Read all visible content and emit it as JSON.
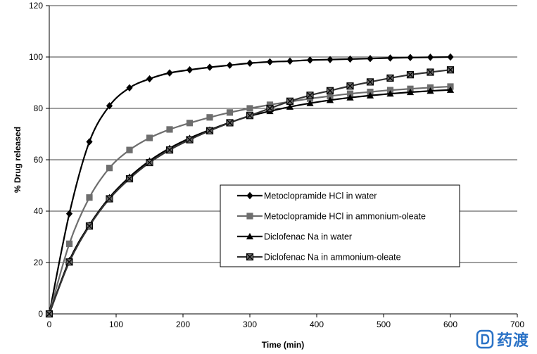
{
  "chart_data": {
    "type": "line",
    "title": "",
    "xlabel": "Time (min)",
    "ylabel": "% Drug released",
    "xlim": [
      0,
      700
    ],
    "ylim": [
      0,
      120
    ],
    "xticks": [
      0,
      100,
      200,
      300,
      400,
      500,
      600,
      700
    ],
    "yticks": [
      0,
      20,
      40,
      60,
      80,
      100,
      120
    ],
    "grid": "horizontal",
    "legend_position": "center-right",
    "x": [
      0,
      30,
      60,
      90,
      120,
      150,
      180,
      210,
      240,
      270,
      300,
      330,
      360,
      390,
      420,
      450,
      480,
      510,
      540,
      570,
      600
    ],
    "series": [
      {
        "name": "Metoclopramide HCl in water",
        "marker": "diamond",
        "color": "#000000",
        "values": [
          0,
          39,
          67,
          81,
          88,
          91.5,
          93.8,
          95,
          96,
          96.8,
          97.6,
          98.1,
          98.4,
          98.8,
          99,
          99.2,
          99.4,
          99.6,
          99.8,
          99.9,
          100
        ]
      },
      {
        "name": "Metoclopramide HCl in ammonium-oleate",
        "marker": "square",
        "color": "#6e6e6e",
        "values": [
          0,
          27.3,
          45.3,
          56.8,
          63.8,
          68.5,
          71.8,
          74.3,
          76.5,
          78.4,
          80,
          81.4,
          82.6,
          83.8,
          84.8,
          85.7,
          86.4,
          87.1,
          87.6,
          88.1,
          88.5
        ]
      },
      {
        "name": "Diclofenac Na in water",
        "marker": "triangle",
        "color": "#000000",
        "values": [
          0,
          20.8,
          34.6,
          45.3,
          53.3,
          59.6,
          64.5,
          68.4,
          71.6,
          74.5,
          77,
          78.9,
          80.6,
          82,
          83.2,
          84.2,
          85,
          85.7,
          86.3,
          86.8,
          87.2
        ]
      },
      {
        "name": "Diclofenac Na in ammonium-oleate",
        "marker": "boxed-x",
        "color": "#333333",
        "values": [
          0,
          20.2,
          34.2,
          44.8,
          52.6,
          58.9,
          63.8,
          67.8,
          71.3,
          74.4,
          77.2,
          80,
          82.8,
          85.1,
          86.9,
          88.7,
          90.3,
          91.8,
          93.1,
          94.1,
          95
        ]
      }
    ]
  },
  "watermark": {
    "text": "药渡",
    "color": "#2a72c6"
  }
}
